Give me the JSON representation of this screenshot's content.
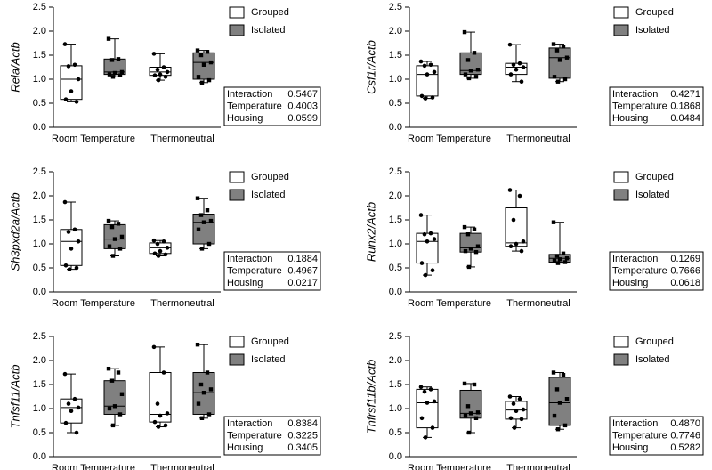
{
  "chart_data": [
    {
      "type": "box",
      "ylabel": "Rela/Actb",
      "categories": [
        "Room Temperature",
        "Thermoneutral"
      ],
      "series": [
        {
          "name": "Grouped",
          "color": "#ffffff",
          "boxes": [
            {
              "min": 0.53,
              "q1": 0.58,
              "median": 1.0,
              "q3": 1.28,
              "max": 1.73,
              "points": [
                1.73,
                1.3,
                1.27,
                1.0,
                0.75,
                0.58,
                0.53
              ]
            },
            {
              "min": 0.98,
              "q1": 1.08,
              "median": 1.15,
              "q3": 1.25,
              "max": 1.53,
              "points": [
                1.53,
                1.25,
                1.2,
                1.15,
                1.1,
                1.08,
                1.05,
                0.98
              ]
            }
          ]
        },
        {
          "name": "Isolated",
          "color": "#808080",
          "boxes": [
            {
              "min": 1.05,
              "q1": 1.1,
              "median": 1.15,
              "q3": 1.42,
              "max": 1.84,
              "points": [
                1.84,
                1.42,
                1.4,
                1.15,
                1.13,
                1.1,
                1.08,
                1.05
              ]
            },
            {
              "min": 0.93,
              "q1": 1.0,
              "median": 1.35,
              "q3": 1.55,
              "max": 1.6,
              "points": [
                1.6,
                1.57,
                1.5,
                1.35,
                1.3,
                1.05,
                0.98,
                0.93
              ]
            }
          ]
        }
      ],
      "ylim": [
        0,
        2.5
      ],
      "yticks": [
        {
          "value": 0,
          "label": "0.0"
        },
        0.5,
        {
          "value": 1,
          "label": "1.0"
        },
        1.5,
        {
          "value": 2,
          "label": "2.0"
        },
        2.5
      ],
      "stats": [
        [
          "Interaction",
          "0.5467"
        ],
        [
          "Temperature",
          "0.4003"
        ],
        [
          "Housing",
          "0.0599"
        ]
      ]
    },
    {
      "type": "box",
      "ylabel": "Csf1r/Actb",
      "categories": [
        "Room Temperature",
        "Thermoneutral"
      ],
      "series": [
        {
          "name": "Grouped",
          "color": "#ffffff",
          "boxes": [
            {
              "min": 0.6,
              "q1": 0.65,
              "median": 1.1,
              "q3": 1.28,
              "max": 1.37,
              "points": [
                1.37,
                1.3,
                1.28,
                1.15,
                1.1,
                0.65,
                0.62,
                0.6
              ]
            },
            {
              "min": 0.95,
              "q1": 1.1,
              "median": 1.25,
              "q3": 1.33,
              "max": 1.72,
              "points": [
                1.72,
                1.33,
                1.3,
                1.25,
                1.2,
                1.1,
                0.95
              ]
            }
          ]
        },
        {
          "name": "Isolated",
          "color": "#808080",
          "boxes": [
            {
              "min": 1.02,
              "q1": 1.1,
              "median": 1.18,
              "q3": 1.55,
              "max": 1.98,
              "points": [
                1.98,
                1.55,
                1.4,
                1.2,
                1.18,
                1.1,
                1.05,
                1.02
              ]
            },
            {
              "min": 0.95,
              "q1": 1.02,
              "median": 1.45,
              "q3": 1.65,
              "max": 1.73,
              "points": [
                1.73,
                1.68,
                1.6,
                1.45,
                1.4,
                1.05,
                1.0,
                0.95
              ]
            }
          ]
        }
      ],
      "ylim": [
        0,
        2.5
      ],
      "yticks": [
        {
          "value": 0,
          "label": "0.0"
        },
        0.5,
        {
          "value": 1,
          "label": "1.0"
        },
        1.5,
        {
          "value": 2,
          "label": "2.0"
        },
        2.5
      ],
      "stats": [
        [
          "Interaction",
          "0.4271"
        ],
        [
          "Temperature",
          "0.1868"
        ],
        [
          "Housing",
          "0.0484"
        ]
      ]
    },
    {
      "type": "box",
      "ylabel": "Sh3pxd2a/Actb",
      "categories": [
        "Room Temperature",
        "Thermoneutral"
      ],
      "series": [
        {
          "name": "Grouped",
          "color": "#ffffff",
          "boxes": [
            {
              "min": 0.47,
              "q1": 0.55,
              "median": 1.05,
              "q3": 1.3,
              "max": 1.87,
              "points": [
                1.87,
                1.3,
                1.25,
                1.05,
                0.9,
                0.55,
                0.5,
                0.47
              ]
            },
            {
              "min": 0.75,
              "q1": 0.8,
              "median": 0.92,
              "q3": 1.02,
              "max": 1.07,
              "points": [
                1.07,
                1.05,
                1.0,
                0.92,
                0.85,
                0.8,
                0.78,
                0.75
              ]
            }
          ]
        },
        {
          "name": "Isolated",
          "color": "#808080",
          "boxes": [
            {
              "min": 0.75,
              "q1": 0.9,
              "median": 1.1,
              "q3": 1.4,
              "max": 1.48,
              "points": [
                1.48,
                1.42,
                1.35,
                1.15,
                1.1,
                0.95,
                0.9,
                0.75
              ]
            },
            {
              "min": 0.9,
              "q1": 1.0,
              "median": 1.45,
              "q3": 1.62,
              "max": 1.95,
              "points": [
                1.95,
                1.7,
                1.6,
                1.48,
                1.45,
                1.3,
                1.0,
                0.9
              ]
            }
          ]
        }
      ],
      "ylim": [
        0,
        2.5
      ],
      "yticks": [
        {
          "value": 0,
          "label": "0.0"
        },
        0.5,
        {
          "value": 1,
          "label": "1.0"
        },
        1.5,
        {
          "value": 2,
          "label": "2.0"
        },
        2.5
      ],
      "stats": [
        [
          "Interaction",
          "0.1884"
        ],
        [
          "Temperature",
          "0.4967"
        ],
        [
          "Housing",
          "0.0217"
        ]
      ]
    },
    {
      "type": "box",
      "ylabel": "Runx2/Actb",
      "categories": [
        "Room Temperature",
        "Thermoneutral"
      ],
      "series": [
        {
          "name": "Grouped",
          "color": "#ffffff",
          "boxes": [
            {
              "min": 0.35,
              "q1": 0.6,
              "median": 1.05,
              "q3": 1.22,
              "max": 1.6,
              "points": [
                1.6,
                1.22,
                1.2,
                1.1,
                1.05,
                0.6,
                0.45,
                0.35
              ]
            },
            {
              "min": 0.85,
              "q1": 0.95,
              "median": 1.02,
              "q3": 1.75,
              "max": 2.12,
              "points": [
                2.12,
                2.0,
                1.5,
                1.05,
                1.0,
                0.95,
                0.85
              ]
            }
          ]
        },
        {
          "name": "Isolated",
          "color": "#808080",
          "boxes": [
            {
              "min": 0.52,
              "q1": 0.83,
              "median": 0.92,
              "q3": 1.22,
              "max": 1.35,
              "points": [
                1.35,
                1.3,
                1.2,
                0.95,
                0.9,
                0.85,
                0.83,
                0.52
              ]
            },
            {
              "min": 0.6,
              "q1": 0.62,
              "median": 0.7,
              "q3": 0.78,
              "max": 1.45,
              "points": [
                1.45,
                0.8,
                0.75,
                0.7,
                0.68,
                0.65,
                0.62,
                0.6
              ]
            }
          ]
        }
      ],
      "ylim": [
        0,
        2.5
      ],
      "yticks": [
        {
          "value": 0,
          "label": "0.0"
        },
        0.5,
        {
          "value": 1,
          "label": "1.0"
        },
        1.5,
        {
          "value": 2,
          "label": "2.0"
        },
        2.5
      ],
      "stats": [
        [
          "Interaction",
          "0.1269"
        ],
        [
          "Temperature",
          "0.7666"
        ],
        [
          "Housing",
          "0.0618"
        ]
      ]
    },
    {
      "type": "box",
      "ylabel": "Tnfsf11/Actb",
      "categories": [
        "Room Temperature",
        "Thermoneutral"
      ],
      "series": [
        {
          "name": "Grouped",
          "color": "#ffffff",
          "boxes": [
            {
              "min": 0.5,
              "q1": 0.7,
              "median": 1.02,
              "q3": 1.2,
              "max": 1.72,
              "points": [
                1.72,
                1.2,
                1.1,
                1.02,
                0.95,
                0.7,
                0.5
              ]
            },
            {
              "min": 0.62,
              "q1": 0.72,
              "median": 0.88,
              "q3": 1.75,
              "max": 2.28,
              "points": [
                2.28,
                1.75,
                1.1,
                0.9,
                0.85,
                0.72,
                0.65,
                0.62
              ]
            }
          ]
        },
        {
          "name": "Isolated",
          "color": "#808080",
          "boxes": [
            {
              "min": 0.65,
              "q1": 0.88,
              "median": 1.05,
              "q3": 1.58,
              "max": 1.83,
              "points": [
                1.83,
                1.75,
                1.58,
                1.3,
                1.05,
                1.0,
                0.88,
                0.65
              ]
            },
            {
              "min": 0.8,
              "q1": 0.88,
              "median": 1.33,
              "q3": 1.75,
              "max": 2.33,
              "points": [
                2.33,
                1.75,
                1.5,
                1.4,
                1.33,
                1.1,
                0.88,
                0.8
              ]
            }
          ]
        }
      ],
      "ylim": [
        0,
        2.5
      ],
      "yticks": [
        {
          "value": 0,
          "label": "0.0"
        },
        0.5,
        {
          "value": 1,
          "label": "1.0"
        },
        1.5,
        {
          "value": 2,
          "label": "2.0"
        },
        2.5
      ],
      "stats": [
        [
          "Interaction",
          "0.8384"
        ],
        [
          "Temperature",
          "0.3225"
        ],
        [
          "Housing",
          "0.3405"
        ]
      ]
    },
    {
      "type": "box",
      "ylabel": "Tnfrsf11b/Actb",
      "categories": [
        "Room Temperature",
        "Thermoneutral"
      ],
      "series": [
        {
          "name": "Grouped",
          "color": "#ffffff",
          "boxes": [
            {
              "min": 0.4,
              "q1": 0.6,
              "median": 1.12,
              "q3": 1.4,
              "max": 1.45,
              "points": [
                1.45,
                1.4,
                1.35,
                1.15,
                1.12,
                0.8,
                0.6,
                0.4
              ]
            },
            {
              "min": 0.6,
              "q1": 0.78,
              "median": 0.97,
              "q3": 1.15,
              "max": 1.25,
              "points": [
                1.25,
                1.2,
                1.1,
                0.98,
                0.95,
                0.8,
                0.78,
                0.6
              ]
            }
          ]
        },
        {
          "name": "Isolated",
          "color": "#808080",
          "boxes": [
            {
              "min": 0.5,
              "q1": 0.8,
              "median": 0.9,
              "q3": 1.38,
              "max": 1.52,
              "points": [
                1.52,
                1.5,
                1.05,
                0.92,
                0.9,
                0.85,
                0.8,
                0.5
              ]
            },
            {
              "min": 0.57,
              "q1": 0.65,
              "median": 1.12,
              "q3": 1.65,
              "max": 1.75,
              "points": [
                1.75,
                1.7,
                1.4,
                1.2,
                1.12,
                0.85,
                0.65,
                0.57
              ]
            }
          ]
        }
      ],
      "ylim": [
        0,
        2.5
      ],
      "yticks": [
        {
          "value": 0,
          "label": "0.0"
        },
        0.5,
        {
          "value": 1,
          "label": "1.0"
        },
        1.5,
        {
          "value": 2,
          "label": "2.0"
        },
        2.5
      ],
      "stats": [
        [
          "Interaction",
          "0.4870"
        ],
        [
          "Temperature",
          "0.7746"
        ],
        [
          "Housing",
          "0.5282"
        ]
      ]
    }
  ]
}
